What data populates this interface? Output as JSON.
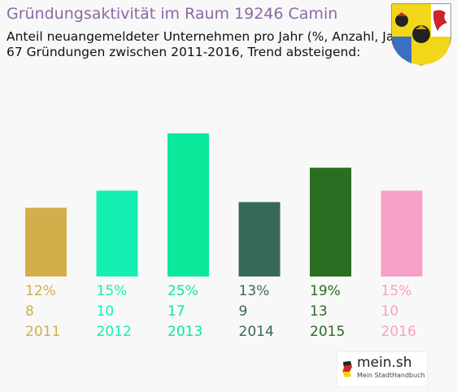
{
  "header": {
    "title": "Gründungsaktivität im Raum 19246 Camin",
    "subtitle_line1": "Anteil neuangemeldeter Unternehmen pro Jahr (%, Anzahl, Jahr)",
    "subtitle_line2": "67 Gründungen zwischen 2011-2016, Trend absteigend:"
  },
  "icons": {
    "crest": "coat-of-arms-icon",
    "logo_flag": "germany-flag-icon"
  },
  "logo": {
    "name": "mein.sh",
    "tagline": "Mein StadtHandbuch"
  },
  "chart_data": {
    "type": "bar",
    "categories": [
      "2011",
      "2012",
      "2013",
      "2014",
      "2015",
      "2016"
    ],
    "percent_labels": [
      "12%",
      "15%",
      "25%",
      "13%",
      "19%",
      "15%"
    ],
    "count_labels": [
      "8",
      "10",
      "17",
      "9",
      "13",
      "10"
    ],
    "values": [
      12,
      15,
      25,
      13,
      19,
      15
    ],
    "counts": [
      8,
      10,
      17,
      9,
      13,
      10
    ],
    "colors": [
      "#d4ae4a",
      "#14f0b2",
      "#0ae89a",
      "#36695a",
      "#2a6e22",
      "#f6a0c8"
    ],
    "label_colors": [
      "#d4ae4a",
      "#14f0b2",
      "#0ae89a",
      "#36695a",
      "#2a6e22",
      "#f6a0c8"
    ],
    "ylim": [
      0,
      25
    ],
    "grid": false
  }
}
